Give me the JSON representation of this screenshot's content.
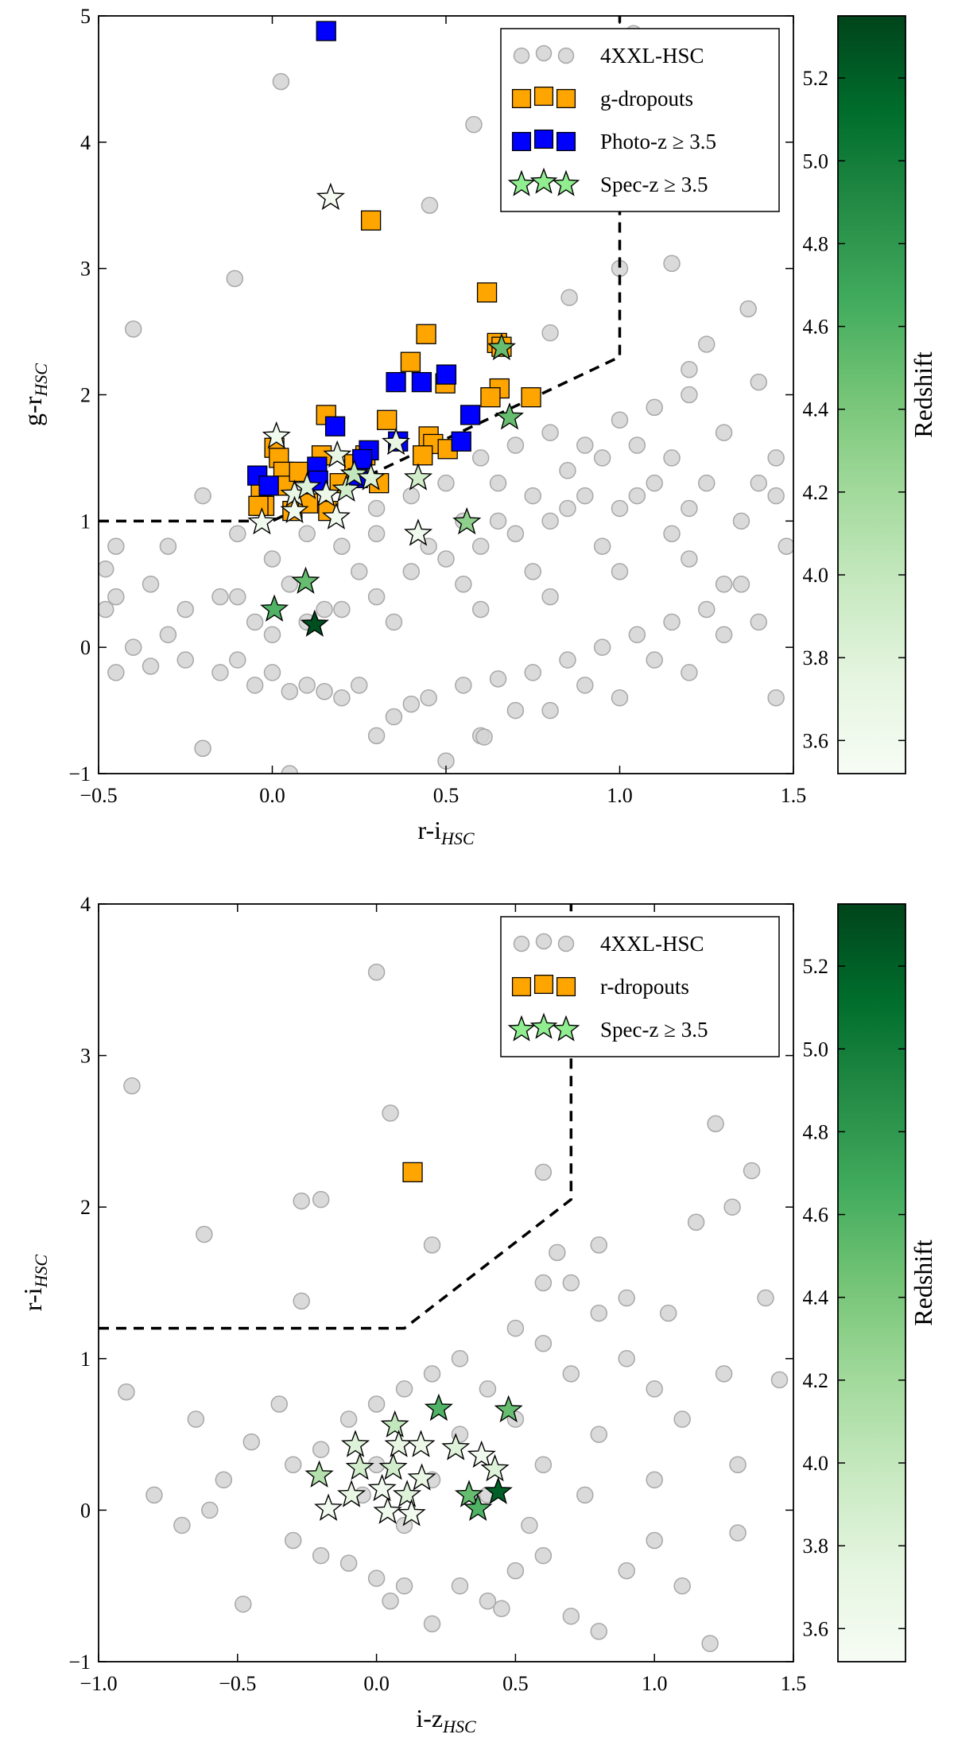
{
  "chart_data": [
    {
      "type": "scatter",
      "xlabel": {
        "text": "r-i",
        "sub": "HSC"
      },
      "ylabel": {
        "text": "g-r",
        "sub": "HSC"
      },
      "xlim": [
        -0.5,
        1.5
      ],
      "ylim": [
        -1,
        5
      ],
      "xticks": [
        {
          "value": -0.5,
          "label": "−0.5"
        },
        {
          "value": 0,
          "label": "0.0"
        },
        {
          "value": 0.5,
          "label": "0.5"
        },
        {
          "value": 1,
          "label": "1.0"
        },
        {
          "value": 1.5,
          "label": "1.5"
        }
      ],
      "yticks": [
        {
          "value": -1,
          "label": "−1"
        },
        0,
        1,
        2,
        3,
        4,
        5
      ],
      "legend": "upper right",
      "colorbar": {
        "label": "Redshift",
        "clim": [
          3.52,
          5.35
        ],
        "ticks": [
          3.6,
          3.8,
          {
            "value": 4,
            "label": "4.0"
          },
          4.2,
          4.4,
          4.6,
          4.8,
          {
            "value": 5,
            "label": "5.0"
          },
          5.2
        ]
      },
      "colormap": [
        "#f7fcf5",
        "#e5f5e0",
        "#c7e9c0",
        "#a1d99b",
        "#74c476",
        "#41ab5d",
        "#238b45",
        "#006d2c",
        "#00441b"
      ],
      "selection": {
        "x": [
          -0.5,
          0,
          1.0,
          1.0
        ],
        "y": [
          1,
          1,
          2.3,
          5
        ]
      },
      "series": [
        {
          "name": "4XXL-HSC",
          "marker": "circle",
          "color": "#d3d3d3",
          "x": [
            -0.48,
            -0.45,
            -0.4,
            -0.35,
            -0.3,
            -0.25,
            -0.2,
            -0.15,
            -0.1,
            -0.05,
            0,
            0.05,
            0.1,
            0.15,
            0.2,
            0.25,
            0.3,
            0.35,
            0.4,
            0.45,
            0.5,
            0.55,
            0.6,
            0.65,
            0.7,
            0.75,
            0.8,
            0.85,
            0.9,
            0.95,
            1.0,
            1.05,
            1.1,
            1.15,
            1.2,
            1.25,
            1.3,
            1.35,
            1.4,
            1.45,
            1.48,
            -0.45,
            -0.35,
            -0.25,
            -0.15,
            -0.05,
            0.05,
            0.15,
            0.25,
            0.35,
            0.45,
            0.55,
            0.65,
            0.75,
            0.85,
            0.95,
            1.05,
            1.15,
            1.25,
            1.35,
            1.45,
            -0.4,
            -0.3,
            -0.2,
            -0.1,
            0,
            0.1,
            0.2,
            0.3,
            0.4,
            0.5,
            0.6,
            0.7,
            0.8,
            0.9,
            1.0,
            1.1,
            1.2,
            1.3,
            1.4,
            1.45,
            0.55,
            0.6,
            0.65,
            0.7,
            0.75,
            0.8,
            0.85,
            0.9,
            0.95,
            1.0,
            1.05,
            1.1,
            1.15,
            1.2,
            0.3,
            0.4,
            0.5,
            0.2,
            0.1,
            0.0,
            -0.1,
            0.3,
            0.6,
            0.8,
            1.0,
            1.2,
            1.3,
            1.4,
            0.025,
            0.58,
            0.453,
            -0.108,
            1.04,
            1.15,
            1.37,
            0.855,
            0.8,
            1.0,
            1.25,
            1.2,
            0.61,
            0.05,
            -0.45,
            -0.48
          ],
          "y": [
            0.3,
            -0.2,
            0.0,
            -0.15,
            0.1,
            -0.1,
            -0.8,
            -0.2,
            -0.1,
            -0.3,
            -0.2,
            -0.35,
            -0.3,
            -0.35,
            -0.4,
            -0.3,
            -0.7,
            -0.55,
            -0.45,
            -0.4,
            -0.9,
            -0.3,
            -0.7,
            -0.25,
            -0.5,
            -0.2,
            -0.5,
            -0.1,
            -0.3,
            0.0,
            -0.4,
            0.1,
            -0.1,
            0.2,
            -0.2,
            0.3,
            0.1,
            0.5,
            0.2,
            -0.4,
            0.8,
            0.4,
            0.5,
            0.3,
            0.4,
            0.2,
            0.5,
            0.3,
            0.6,
            0.2,
            0.8,
            0.5,
            1.0,
            0.6,
            1.1,
            0.8,
            1.2,
            0.9,
            1.3,
            1.0,
            1.5,
            2.52,
            0.8,
            1.2,
            0.9,
            0.7,
            0.9,
            0.8,
            1.1,
            1.2,
            1.3,
            1.5,
            1.6,
            1.7,
            1.6,
            1.8,
            1.9,
            2.0,
            1.7,
            2.1,
            1.2,
            1.0,
            0.8,
            1.3,
            0.9,
            1.2,
            1.0,
            1.4,
            1.2,
            1.5,
            1.1,
            1.6,
            1.3,
            1.5,
            1.1,
            0.4,
            0.6,
            0.7,
            0.3,
            0.2,
            0.1,
            0.4,
            0.9,
            0.3,
            0.4,
            0.6,
            0.7,
            0.5,
            1.3,
            4.48,
            4.14,
            3.5,
            2.92,
            4.86,
            3.04,
            2.68,
            2.77,
            2.49,
            3.0,
            2.4,
            2.2,
            -0.71,
            -1.0,
            0.8,
            0.62
          ]
        },
        {
          "name": "g-dropouts",
          "marker": "square",
          "color": "#ffa500",
          "x": [
            0.284,
            0.618,
            0.647,
            0.66,
            0.443,
            0.398,
            0.498,
            0.654,
            0.628,
            0.745,
            0.155,
            0.33,
            0.45,
            0.463,
            0.505,
            0.433,
            0.006,
            0.019,
            0.032,
            0.041,
            -0.033,
            -0.023,
            0.077,
            0.142,
            0.058,
            0.103,
            0.161,
            0.194,
            0.236,
            0.307,
            0.268,
            -0.04
          ],
          "y": [
            3.38,
            2.81,
            2.41,
            2.38,
            2.48,
            2.26,
            2.09,
            2.05,
            1.98,
            1.98,
            1.84,
            1.8,
            1.67,
            1.61,
            1.57,
            1.52,
            1.58,
            1.5,
            1.39,
            1.28,
            1.25,
            1.12,
            1.39,
            1.52,
            1.08,
            1.14,
            1.08,
            1.3,
            1.45,
            1.3,
            1.52,
            1.12
          ]
        },
        {
          "name": "Photo-z ≥ 3.5",
          "marker": "square",
          "color": "#0000ff",
          "x": [
            0.155,
            0.181,
            0.356,
            0.43,
            0.501,
            0.57,
            0.544,
            0.362,
            0.278,
            0.259,
            0.129,
            0.132,
            -0.043,
            -0.01,
            0.246
          ],
          "y": [
            4.88,
            1.75,
            2.1,
            2.1,
            2.16,
            1.84,
            1.63,
            1.63,
            1.56,
            1.49,
            1.43,
            1.32,
            1.36,
            1.28,
            1.34
          ]
        },
        {
          "name": "Spec-z ≥ 3.5",
          "marker": "star",
          "color": "#90ee90",
          "x": [
            0.168,
            0.012,
            0.356,
            0.42,
            0.42,
            -0.03,
            0.184,
            0.56,
            0.66,
            0.683,
            0.096,
            0.006,
            0.122,
            0.064,
            0.1,
            0.155,
            0.213,
            0.236,
            0.284,
            0.187,
            0.064
          ],
          "y": [
            3.56,
            1.67,
            1.62,
            1.34,
            0.9,
            0.99,
            1.03,
            0.99,
            2.37,
            1.82,
            0.52,
            0.3,
            0.18,
            1.21,
            1.27,
            1.21,
            1.25,
            1.37,
            1.34,
            1.52,
            1.08
          ],
          "z": [
            3.55,
            3.6,
            3.7,
            3.9,
            3.6,
            3.6,
            3.6,
            4.3,
            4.5,
            4.5,
            4.5,
            4.6,
            5.3,
            3.7,
            3.8,
            3.65,
            3.9,
            4.0,
            3.8,
            3.7,
            3.6
          ]
        }
      ]
    },
    {
      "type": "scatter",
      "xlabel": {
        "text": "i-z",
        "sub": "HSC"
      },
      "ylabel": {
        "text": "r-i",
        "sub": "HSC"
      },
      "xlim": [
        -1.0,
        1.5
      ],
      "ylim": [
        -1,
        4
      ],
      "xticks": [
        {
          "value": -1,
          "label": "−1.0"
        },
        {
          "value": -0.5,
          "label": "−0.5"
        },
        {
          "value": 0,
          "label": "0.0"
        },
        {
          "value": 0.5,
          "label": "0.5"
        },
        {
          "value": 1,
          "label": "1.0"
        },
        {
          "value": 1.5,
          "label": "1.5"
        }
      ],
      "yticks": [
        {
          "value": -1,
          "label": "−1"
        },
        0,
        1,
        2,
        3,
        4
      ],
      "legend": "upper right",
      "colorbar": {
        "label": "Redshift",
        "clim": [
          3.52,
          5.35
        ],
        "ticks": [
          3.6,
          3.8,
          {
            "value": 4,
            "label": "4.0"
          },
          4.2,
          4.4,
          4.6,
          4.8,
          {
            "value": 5,
            "label": "5.0"
          },
          5.2
        ]
      },
      "colormap": [
        "#f7fcf5",
        "#e5f5e0",
        "#c7e9c0",
        "#a1d99b",
        "#74c476",
        "#41ab5d",
        "#238b45",
        "#006d2c",
        "#00441b"
      ],
      "selection": {
        "x": [
          -1.0,
          0.1,
          0.7,
          0.7
        ],
        "y": [
          1.2,
          1.2,
          2.05,
          4
        ]
      },
      "series": [
        {
          "name": "4XXL-HSC",
          "marker": "circle",
          "color": "#d3d3d3",
          "x": [
            -0.3,
            -0.2,
            -0.1,
            0,
            0.05,
            0.1,
            0.2,
            0.3,
            0.4,
            0.45,
            0.5,
            0.6,
            0.7,
            0.8,
            0.9,
            1.0,
            1.1,
            1.2,
            1.3,
            -0.3,
            -0.2,
            -0.1,
            0,
            0.1,
            0.2,
            0.3,
            0.4,
            0.5,
            0.6,
            0.7,
            0.8,
            0.9,
            1.0,
            1.1,
            0.0,
            0.2,
            0.4,
            0.6,
            0.8,
            1.0,
            0.5,
            0.7,
            0.9,
            0.3,
            0.1,
            -0.05,
            0.55,
            0.75,
            0.65,
            0.8,
            0.6,
            1.05,
            -0.88,
            0.0,
            0.05,
            -0.27,
            -0.2,
            -0.62,
            0.2,
            0.6,
            1.22,
            1.35,
            1.28,
            -0.9,
            1.45,
            -0.65,
            -0.48,
            -0.7,
            -0.55,
            -0.45,
            1.3,
            1.4,
            1.15,
            -0.6,
            -0.8,
            1.25,
            -0.35,
            -0.27
          ],
          "y": [
            -0.2,
            -0.3,
            -0.35,
            -0.45,
            -0.6,
            -0.5,
            -0.75,
            -0.5,
            -0.6,
            -0.65,
            -0.4,
            -0.3,
            -0.7,
            -0.8,
            -0.4,
            -0.2,
            -0.5,
            -0.88,
            -0.15,
            0.3,
            0.4,
            0.6,
            0.7,
            0.8,
            0.9,
            1.0,
            0.8,
            1.2,
            1.1,
            1.5,
            1.3,
            1.0,
            0.8,
            0.6,
            0.3,
            0.2,
            0.1,
            0.3,
            0.5,
            0.2,
            0.6,
            0.9,
            1.4,
            0.5,
            -0.1,
            0.1,
            -0.1,
            0.1,
            1.7,
            1.75,
            1.5,
            1.3,
            2.8,
            3.55,
            2.62,
            2.04,
            2.05,
            1.82,
            1.75,
            2.23,
            2.55,
            2.24,
            2.0,
            0.78,
            0.86,
            0.6,
            -0.62,
            -0.1,
            0.2,
            0.45,
            0.3,
            1.4,
            1.9,
            0.0,
            0.1,
            0.9,
            0.7,
            1.38
          ]
        },
        {
          "name": "r-dropouts",
          "marker": "square",
          "color": "#ffa500",
          "x": [
            0.13
          ],
          "y": [
            2.23
          ]
        },
        {
          "name": "Spec-z ≥ 3.5",
          "marker": "star",
          "color": "#90ee90",
          "x": [
            0.224,
            0.475,
            0.066,
            -0.206,
            -0.173,
            -0.076,
            -0.06,
            -0.09,
            0.06,
            0.08,
            0.16,
            0.285,
            0.378,
            0.426,
            0.163,
            0.11,
            0.04,
            0.126,
            0.02,
            0.333,
            0.365,
            0.438
          ],
          "y": [
            0.67,
            0.66,
            0.56,
            0.23,
            0.01,
            0.43,
            0.28,
            0.1,
            0.28,
            0.43,
            0.43,
            0.41,
            0.36,
            0.27,
            0.21,
            0.1,
            -0.01,
            -0.025,
            0.14,
            0.1,
            0.01,
            0.12
          ],
          "z": [
            4.6,
            4.5,
            4.0,
            4.1,
            3.6,
            3.8,
            3.9,
            3.7,
            3.9,
            3.7,
            3.65,
            3.8,
            3.6,
            3.8,
            3.7,
            3.8,
            3.6,
            3.6,
            3.6,
            4.5,
            4.6,
            5.2
          ]
        }
      ]
    }
  ]
}
